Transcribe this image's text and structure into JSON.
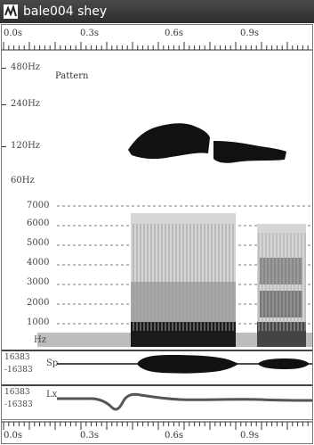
{
  "window": {
    "title": "bale004 shey",
    "icon": "waveform-app-icon"
  },
  "ruler_top": {
    "labels": [
      "0.0s",
      "0.3s",
      "0.6s",
      "0.9s"
    ]
  },
  "ruler_bottom": {
    "labels": [
      "0.0s",
      "0.3s",
      "0.6s",
      "0.9s"
    ]
  },
  "pitch_panel": {
    "title": "Pattern",
    "y_labels": [
      "480Hz",
      "240Hz",
      "120Hz",
      "60Hz"
    ]
  },
  "spectrogram_panel": {
    "y_labels": [
      "7000",
      "6000",
      "5000",
      "4000",
      "3000",
      "2000",
      "1000"
    ],
    "unit": "Hz"
  },
  "speech_panel": {
    "label": "Sp",
    "max": "16383",
    "min": "-16383"
  },
  "larynx_panel": {
    "label": "Lx",
    "max": "16383",
    "min": "-16383"
  },
  "colors": {
    "titlebar": "#3a3a3a",
    "trace": "#111111",
    "lx_trace": "#555555"
  }
}
